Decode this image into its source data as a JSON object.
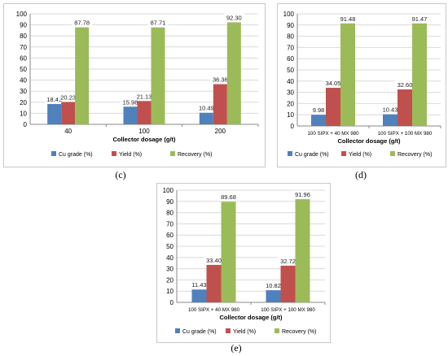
{
  "colors": {
    "cu_grade": "#4f81bd",
    "yield": "#c0504d",
    "recovery": "#9bbb59",
    "gridline": "#d9d9d9",
    "axis": "#888888"
  },
  "chart_data": [
    {
      "panel": "c",
      "caption": "(c)",
      "type": "bar",
      "categories": [
        "40",
        "100",
        "200"
      ],
      "xlabel": "Collector dosage (g/t)",
      "ylabel": "",
      "ylim": [
        0,
        100
      ],
      "yticks": [
        "0",
        "10",
        "20",
        "30",
        "40",
        "50",
        "60",
        "70",
        "80",
        "90",
        "100"
      ],
      "grid": true,
      "legend_position": "bottom",
      "series": [
        {
          "name": "Cu grade (%)",
          "values": [
            18.42,
            15.98,
            10.49
          ],
          "labels": [
            "18.42",
            "15.98",
            "10.49"
          ]
        },
        {
          "name": "Yield (%)",
          "values": [
            20.23,
            21.13,
            36.36
          ],
          "labels": [
            "20.23",
            "21.13",
            "36.36"
          ]
        },
        {
          "name": "Recovery (%)",
          "values": [
            87.78,
            87.71,
            92.3
          ],
          "labels": [
            "87.78",
            "87.71",
            "92.30"
          ]
        }
      ]
    },
    {
      "panel": "d",
      "caption": "(d)",
      "type": "bar",
      "categories": [
        "100 SIPX + 40 MX 980",
        "100 SIPX + 100 MX 980"
      ],
      "xlabel": "Collector dosage (g/t)",
      "ylabel": "",
      "ylim": [
        0,
        100
      ],
      "yticks": [
        "0",
        "10",
        "20",
        "30",
        "40",
        "50",
        "60",
        "70",
        "80",
        "90",
        "100"
      ],
      "grid": true,
      "legend_position": "bottom",
      "series": [
        {
          "name": "Cu grade (%)",
          "values": [
            9.98,
            10.43
          ],
          "labels": [
            "9.98",
            "10.43"
          ]
        },
        {
          "name": "Yield (%)",
          "values": [
            34.05,
            32.6
          ],
          "labels": [
            "34.05",
            "32.60"
          ]
        },
        {
          "name": "Recovery (%)",
          "values": [
            91.48,
            91.47
          ],
          "labels": [
            "91.48",
            "91.47"
          ]
        }
      ]
    },
    {
      "panel": "e",
      "caption": "(e)",
      "type": "bar",
      "categories": [
        "100 SIPX + 40 MX 980",
        "100 SIPX + 100 MX 980"
      ],
      "xlabel": "Collector dosage (g/t)",
      "ylabel": "",
      "ylim": [
        0,
        100
      ],
      "yticks": [
        "0",
        "10",
        "20",
        "30",
        "40",
        "50",
        "60",
        "70",
        "80",
        "90",
        "100"
      ],
      "grid": true,
      "legend_position": "bottom",
      "series": [
        {
          "name": "Cu grade (%)",
          "values": [
            11.43,
            10.82
          ],
          "labels": [
            "11.43",
            "10.82"
          ]
        },
        {
          "name": "Yield (%)",
          "values": [
            33.4,
            32.72
          ],
          "labels": [
            "33.40",
            "32.72"
          ]
        },
        {
          "name": "Recovery (%)",
          "values": [
            89.68,
            91.96
          ],
          "labels": [
            "89.68",
            "91.96"
          ]
        }
      ]
    }
  ]
}
